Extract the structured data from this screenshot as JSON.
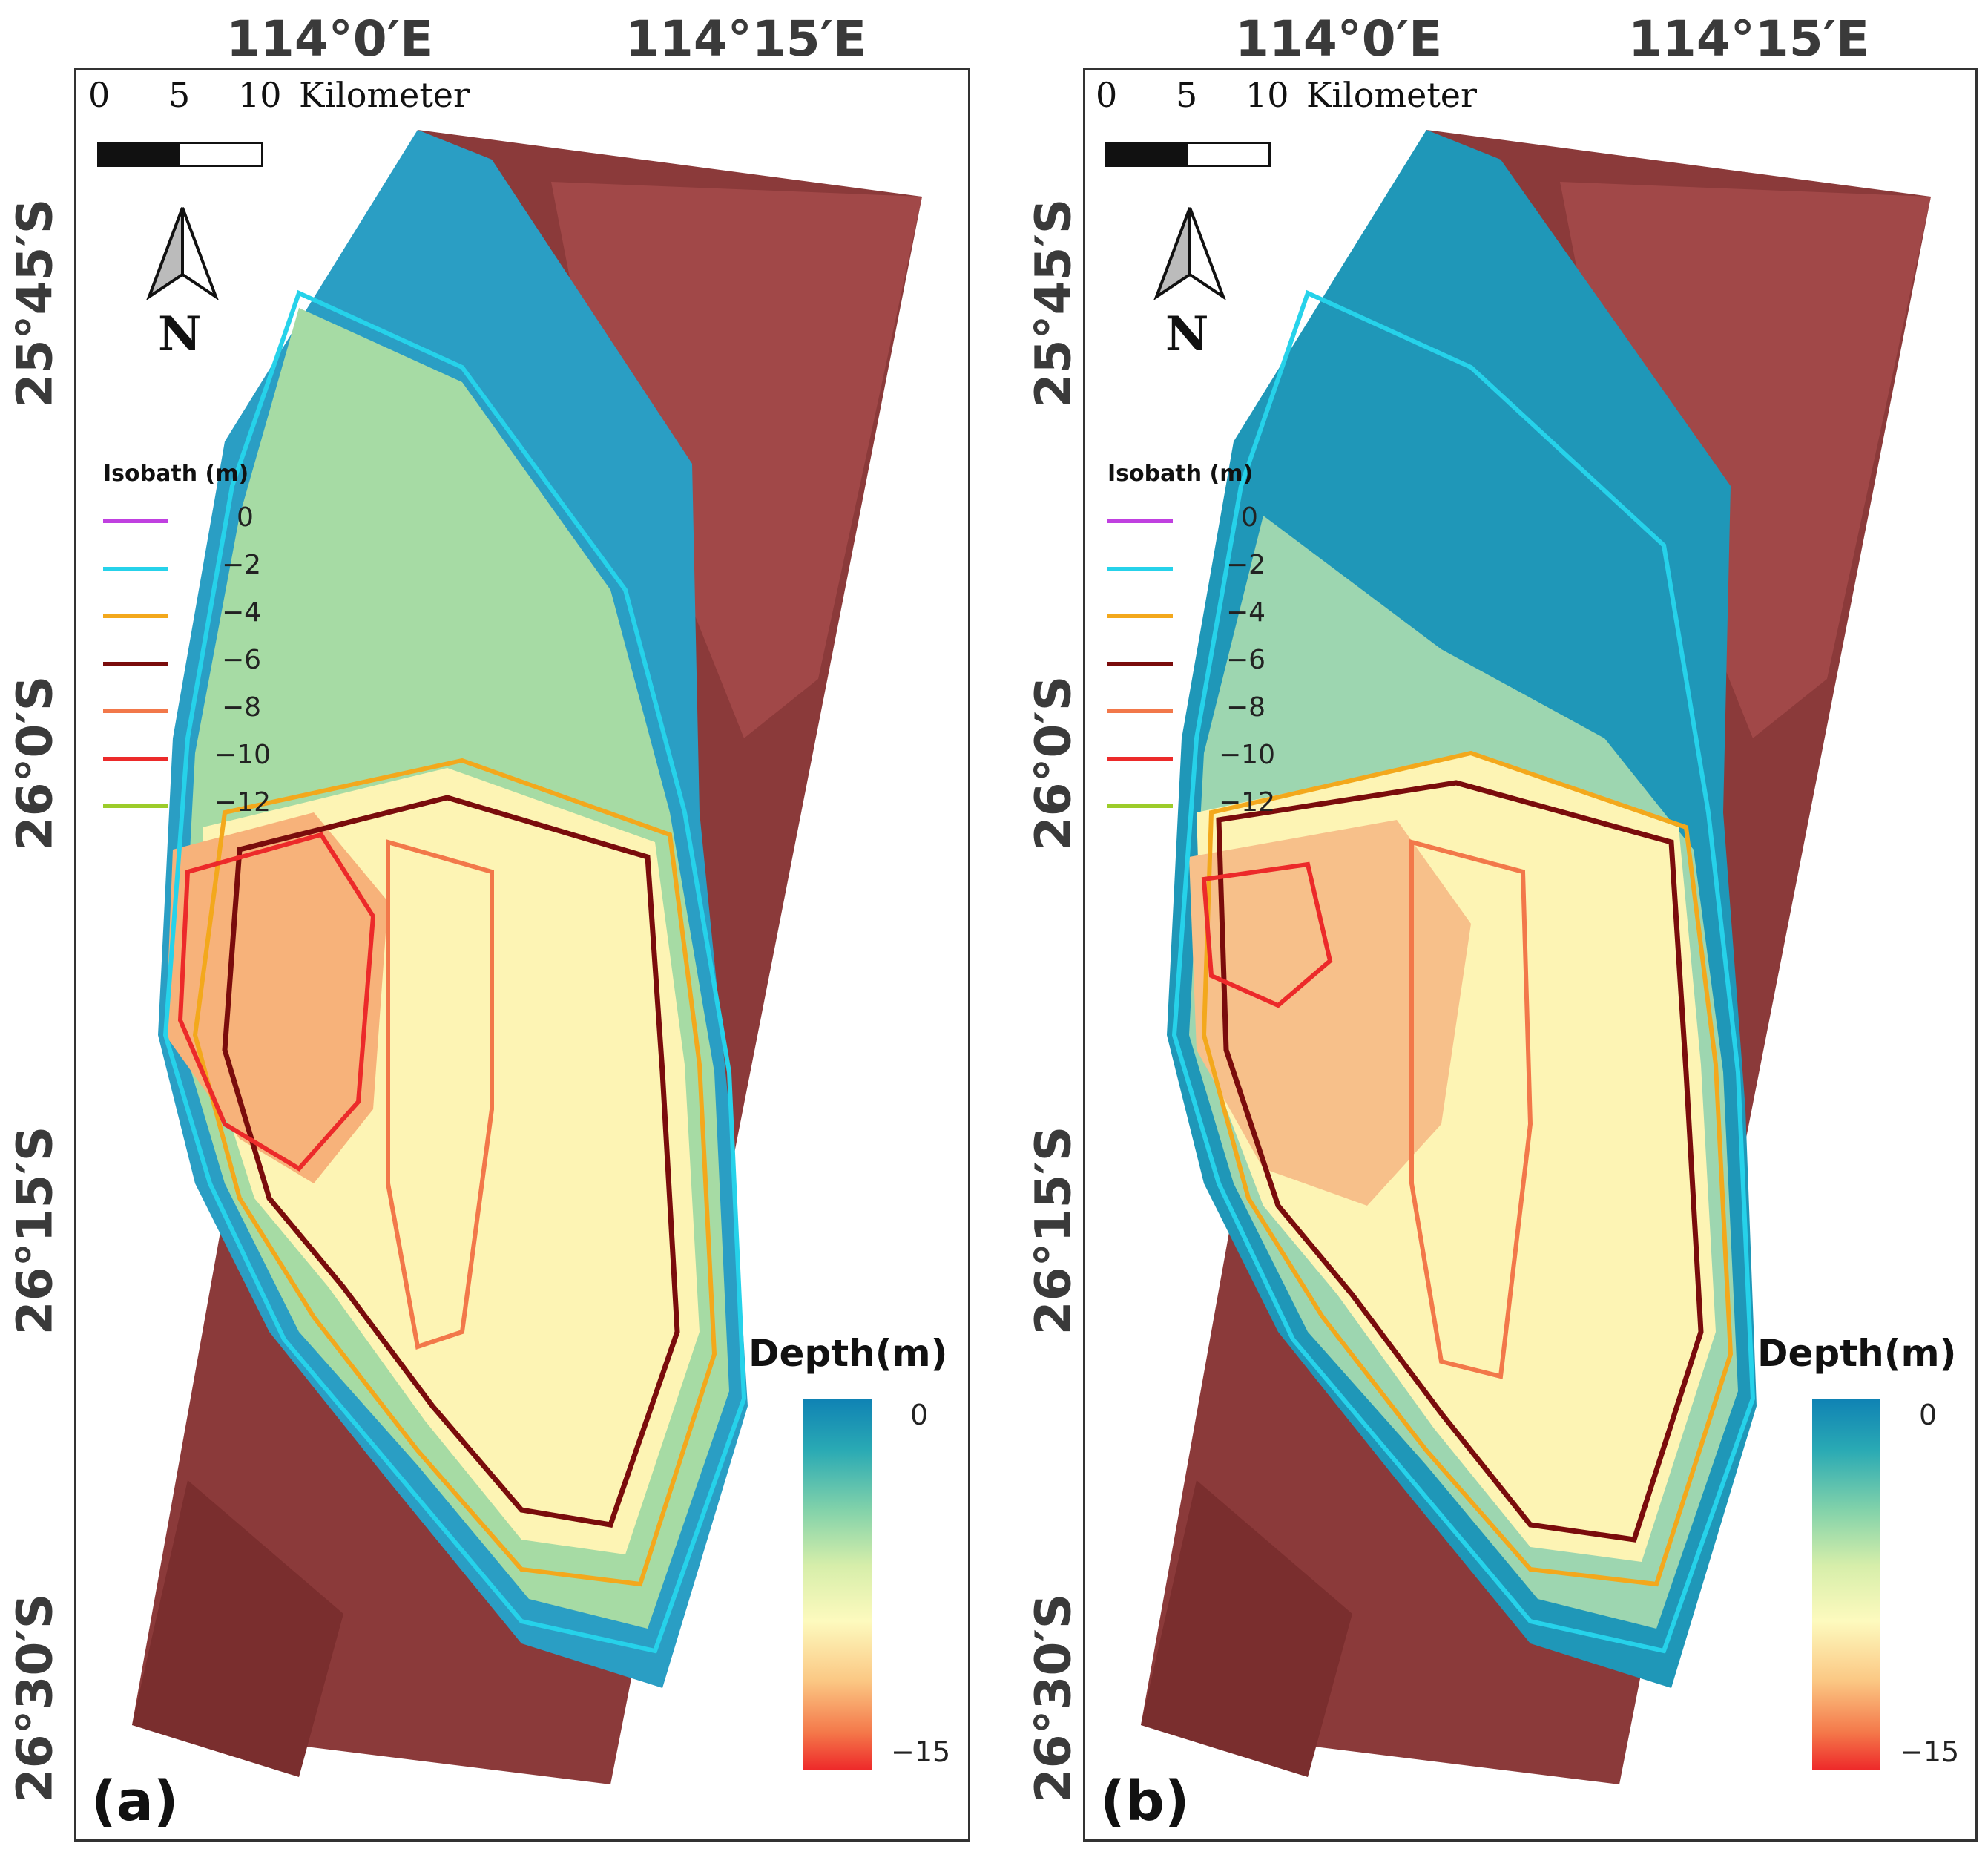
{
  "longitude_labels": [
    "114°0′E",
    "114°15′E"
  ],
  "latitude_labels": [
    "25°45′S",
    "26°0′S",
    "26°15′S",
    "26°30′S"
  ],
  "scale_bar": {
    "ticks": [
      "0",
      "5",
      "10"
    ],
    "unit": "Kilometer"
  },
  "north_arrow": {
    "label": "N"
  },
  "isobath_legend": {
    "title": "Isobath (m)",
    "items": [
      {
        "value": "0",
        "color": "#c040e0"
      },
      {
        "value": "−2",
        "color": "#26d2ea"
      },
      {
        "value": "−4",
        "color": "#f3a81c"
      },
      {
        "value": "−6",
        "color": "#7a0c0c"
      },
      {
        "value": "−8",
        "color": "#f2784a"
      },
      {
        "value": "−10",
        "color": "#ec2a2a"
      },
      {
        "value": "−12",
        "color": "#9ccc2a"
      }
    ]
  },
  "depth_colorbar": {
    "title": "Depth(m)",
    "max_label": "0",
    "min_label": "−15",
    "colors": [
      "#0f82b4",
      "#2aaab4",
      "#82d2aa",
      "#d6eeaa",
      "#fdfabe",
      "#fbc884",
      "#f4784a",
      "#ee2a2a"
    ]
  },
  "panels": [
    {
      "tag": "(a)"
    },
    {
      "tag": "(b)"
    }
  ]
}
